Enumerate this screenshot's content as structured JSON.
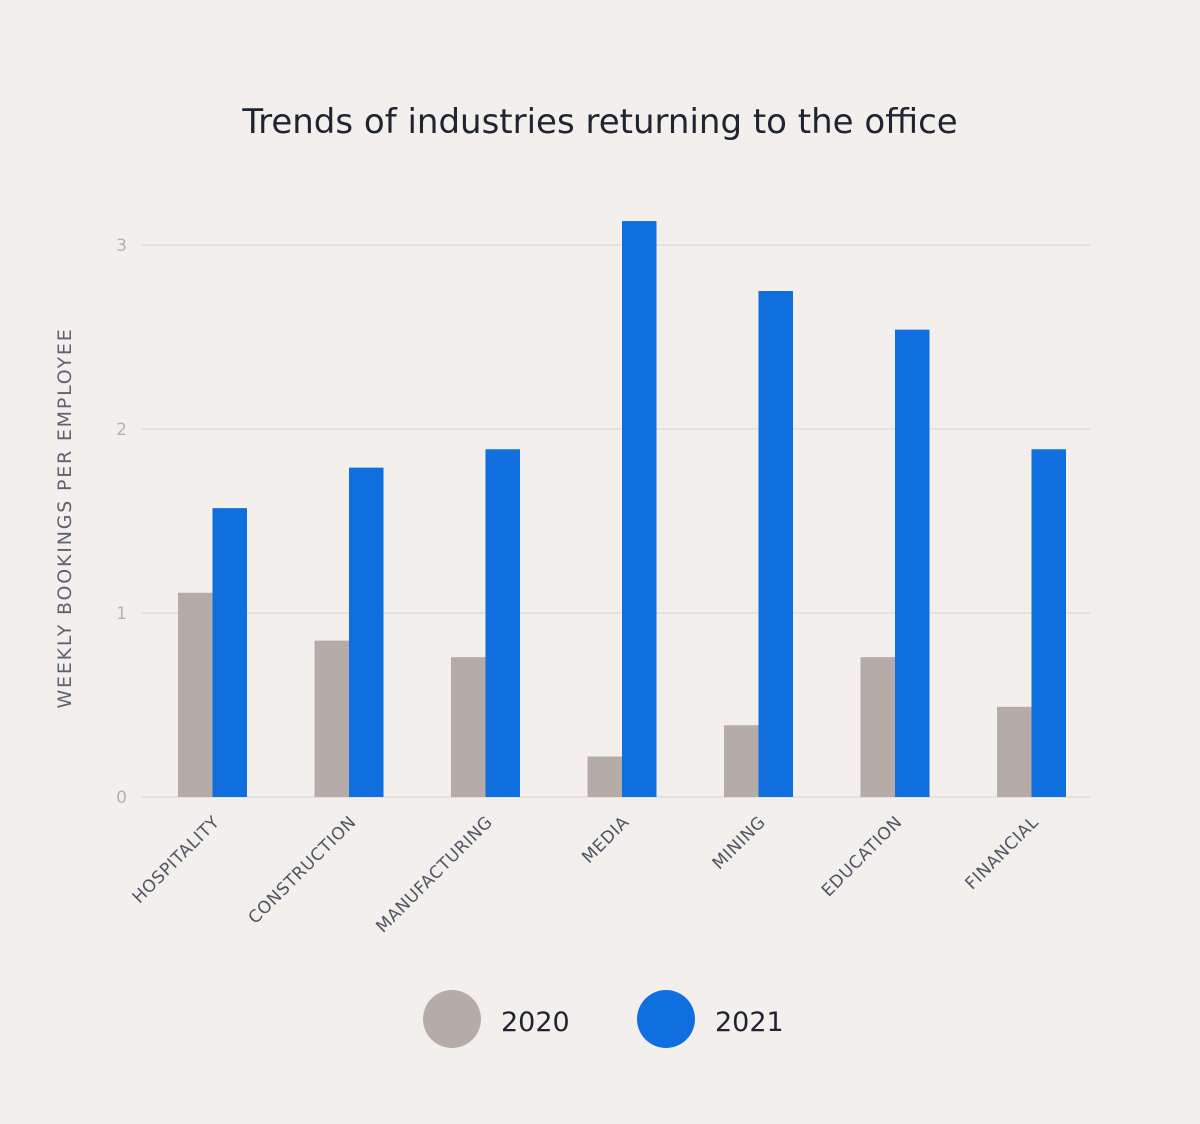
{
  "chart_data": {
    "type": "bar",
    "title": "Trends of industries returning to the office",
    "xlabel": "",
    "ylabel": "WEEKLY BOOKINGS PER EMPLOYEE",
    "ylim": [
      0,
      3.3
    ],
    "yticks": [
      0,
      1,
      2,
      3
    ],
    "categories": [
      "HOSPITALITY",
      "CONSTRUCTION",
      "MANUFACTURING",
      "MEDIA",
      "MINING",
      "EDUCATION",
      "FINANCIAL"
    ],
    "series": [
      {
        "name": "2020",
        "color": "#b6aca7",
        "values": [
          1.11,
          0.85,
          0.76,
          0.22,
          0.39,
          0.76,
          0.49
        ]
      },
      {
        "name": "2021",
        "color": "#0f6fde",
        "values": [
          1.57,
          1.79,
          1.89,
          3.13,
          2.75,
          2.54,
          1.89
        ]
      }
    ],
    "grid": true,
    "legend_position": "bottom-center"
  }
}
